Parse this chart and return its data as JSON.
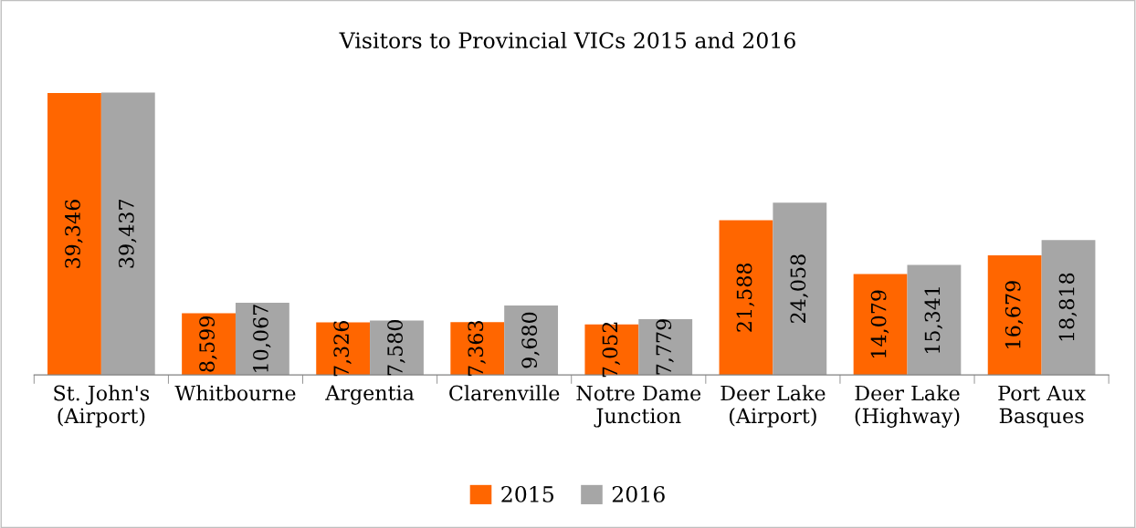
{
  "chart_data": {
    "type": "bar",
    "title": "Visitors to Provincial VICs 2015 and 2016",
    "categories": [
      "St. John's\n(Airport)",
      "Whitbourne",
      "Argentia",
      "Clarenville",
      "Notre Dame\nJunction",
      "Deer Lake\n(Airport)",
      "Deer Lake\n(Highway)",
      "Port Aux\nBasques"
    ],
    "series": [
      {
        "name": "2015",
        "color": "#ff6600",
        "values": [
          39346,
          8599,
          7326,
          7363,
          7052,
          21588,
          14079,
          16679
        ],
        "value_labels": [
          "39,346",
          "8,599",
          "7,326",
          "7,363",
          "7,052",
          "21,588",
          "14,079",
          "16,679"
        ]
      },
      {
        "name": "2016",
        "color": "#a6a6a6",
        "values": [
          39437,
          10067,
          7580,
          9680,
          7779,
          24058,
          15341,
          18818
        ],
        "value_labels": [
          "39,437",
          "10,067",
          "7,580",
          "9,680",
          "7,779",
          "24,058",
          "15,341",
          "18,818"
        ]
      }
    ],
    "legend": "bottom",
    "grid": false
  }
}
